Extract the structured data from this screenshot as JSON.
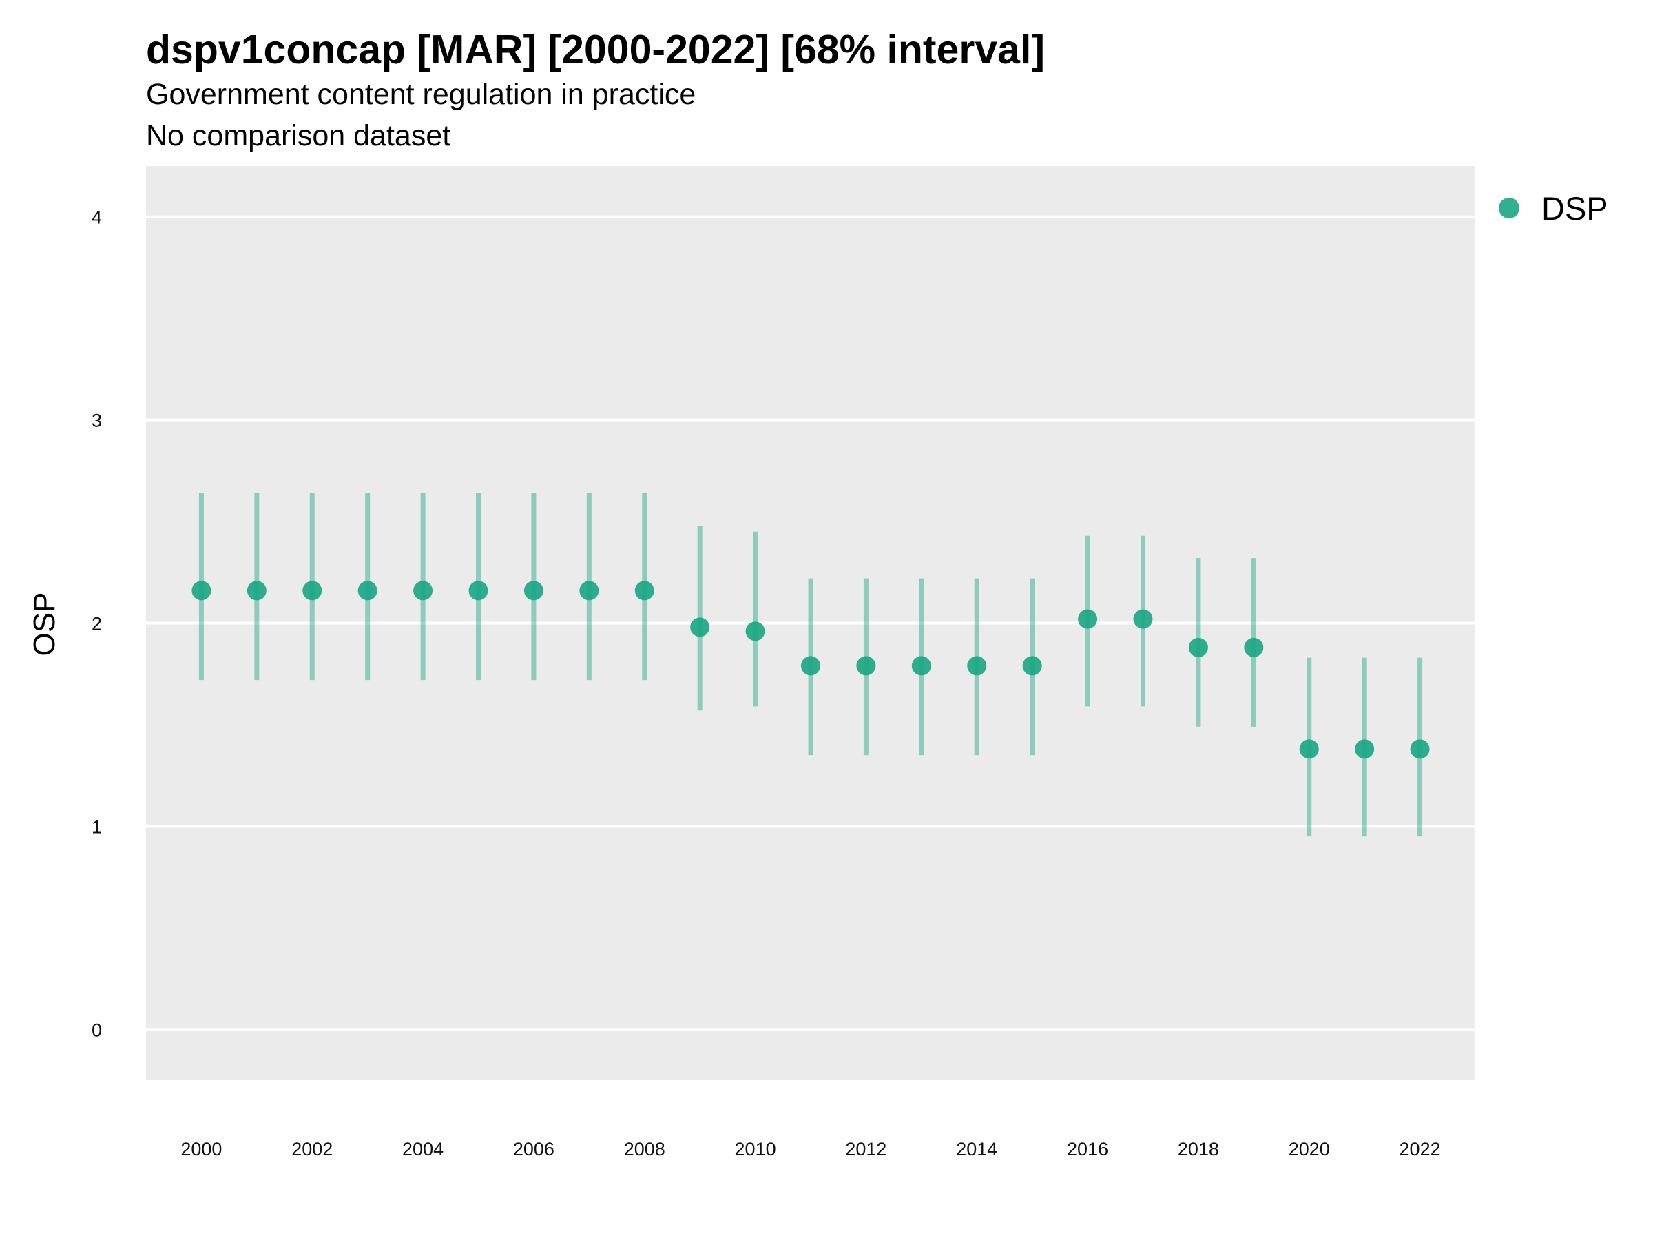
{
  "title": "dspv1concap [MAR] [2000-2022] [68% interval]",
  "subtitle": "Government content regulation in practice",
  "caption": "No comparison dataset",
  "chart_data": {
    "type": "scatter",
    "title": "dspv1concap [MAR] [2000-2022] [68% interval]",
    "subtitle": "Government content regulation in practice",
    "xlabel": "",
    "ylabel": "OSP",
    "ylim": [
      -0.25,
      4.25
    ],
    "xlim": [
      1999,
      2023
    ],
    "y_ticks": [
      "0",
      "1",
      "2",
      "3",
      "4"
    ],
    "x_ticks": [
      "2000",
      "2002",
      "2004",
      "2006",
      "2008",
      "2010",
      "2012",
      "2014",
      "2016",
      "2018",
      "2020",
      "2022"
    ],
    "grid": true,
    "legend_position": "top-right",
    "series": [
      {
        "name": "DSP",
        "color": "#1ba784",
        "x": [
          2000,
          2001,
          2002,
          2003,
          2004,
          2005,
          2006,
          2007,
          2008,
          2009,
          2010,
          2011,
          2012,
          2013,
          2014,
          2015,
          2016,
          2017,
          2018,
          2019,
          2020,
          2021,
          2022
        ],
        "y": [
          2.16,
          2.16,
          2.16,
          2.16,
          2.16,
          2.16,
          2.16,
          2.16,
          2.16,
          1.98,
          1.96,
          1.79,
          1.79,
          1.79,
          1.79,
          1.79,
          2.02,
          2.02,
          1.88,
          1.88,
          1.38,
          1.38,
          1.38
        ],
        "low": [
          1.72,
          1.72,
          1.72,
          1.72,
          1.72,
          1.72,
          1.72,
          1.72,
          1.72,
          1.57,
          1.59,
          1.35,
          1.35,
          1.35,
          1.35,
          1.35,
          1.59,
          1.59,
          1.49,
          1.49,
          0.95,
          0.95,
          0.95
        ],
        "high": [
          2.64,
          2.64,
          2.64,
          2.64,
          2.64,
          2.64,
          2.64,
          2.64,
          2.64,
          2.48,
          2.45,
          2.22,
          2.22,
          2.22,
          2.22,
          2.22,
          2.43,
          2.43,
          2.32,
          2.32,
          1.83,
          1.83,
          1.83
        ]
      }
    ]
  }
}
